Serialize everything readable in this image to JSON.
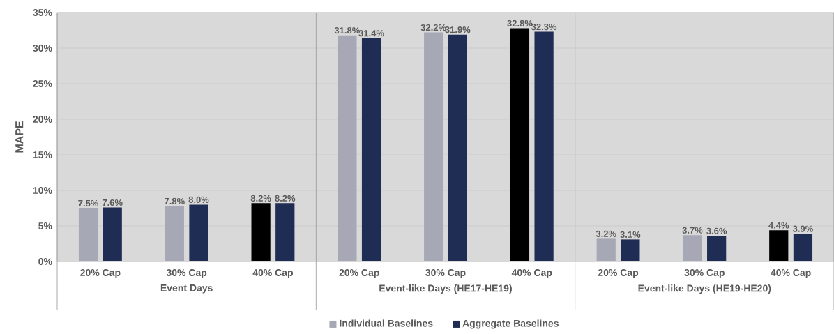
{
  "chart_data": {
    "type": "bar",
    "ylabel": "MAPE",
    "categories": [
      "20% Cap",
      "30% Cap",
      "40% Cap",
      "20% Cap",
      "30% Cap",
      "40% Cap",
      "20% Cap",
      "30% Cap",
      "40% Cap"
    ],
    "annotations": [
      "Event Days",
      "Event-like Days (HE17-HE19)",
      "Event-like Days (HE19-HE20)"
    ],
    "series": [
      {
        "name": "Individual Baselines",
        "color": "#a6a9b5",
        "colors": [
          "#a6a9b5",
          "#a6a9b5",
          "#000000",
          "#a6a9b5",
          "#a6a9b5",
          "#000000",
          "#a6a9b5",
          "#a6a9b5",
          "#000000"
        ],
        "values": [
          7.5,
          7.8,
          8.2,
          31.8,
          32.2,
          32.8,
          3.2,
          3.7,
          4.4
        ],
        "value_labels": [
          "7.5%",
          "7.8%",
          "8.2%",
          "31.8%",
          "32.2%",
          "32.8%",
          "3.2%",
          "3.7%",
          "4.4%"
        ]
      },
      {
        "name": "Aggregate Baselines",
        "color": "#1f2d55",
        "values": [
          7.6,
          8.0,
          8.2,
          31.4,
          31.9,
          32.3,
          3.1,
          3.6,
          3.9
        ],
        "value_labels": [
          "7.6%",
          "8.0%",
          "8.2%",
          "31.4%",
          "31.9%",
          "32.3%",
          "3.1%",
          "3.6%",
          "3.9%"
        ]
      }
    ],
    "ylim": [
      0,
      35
    ],
    "yticks": [
      {
        "value": 0,
        "label": "0%"
      },
      {
        "value": 5,
        "label": "5%"
      },
      {
        "value": 10,
        "label": "10%"
      },
      {
        "value": 15,
        "label": "15%"
      },
      {
        "value": 20,
        "label": "20%"
      },
      {
        "value": 25,
        "label": "25%"
      },
      {
        "value": 30,
        "label": "30%"
      },
      {
        "value": 35,
        "label": "35%"
      }
    ],
    "grid": "y",
    "legend": "bottom"
  }
}
